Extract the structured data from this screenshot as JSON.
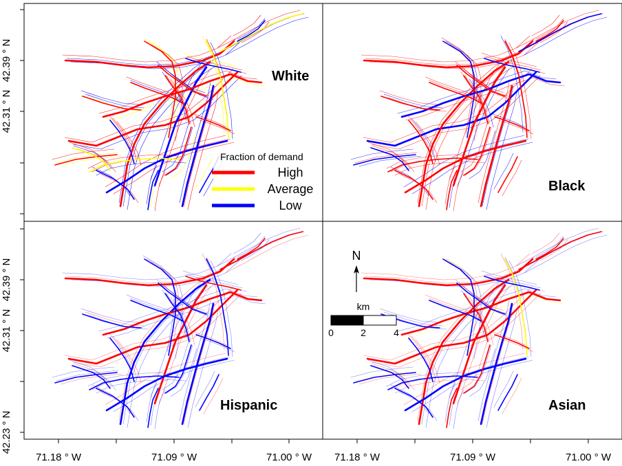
{
  "figure": {
    "latitude_labels": [
      "42.39 ° N",
      "42.31 ° N",
      "42.23 ° N"
    ],
    "longitude_labels": [
      "71.18 ° W",
      "71.09 ° W",
      "71.00 ° W"
    ],
    "panels": [
      {
        "id": "white",
        "label": "White"
      },
      {
        "id": "black",
        "label": "Black"
      },
      {
        "id": "hispanic",
        "label": "Hispanic"
      },
      {
        "id": "asian",
        "label": "Asian"
      }
    ]
  },
  "legend": {
    "title": "Fraction of demand",
    "items": [
      {
        "label": "High",
        "color": "#ff0000"
      },
      {
        "label": "Average",
        "color": "#ffff00"
      },
      {
        "label": "Low",
        "color": "#0000ff"
      }
    ]
  },
  "north_arrow": {
    "label": "N"
  },
  "scale_bar": {
    "unit": "km",
    "ticks": [
      "0",
      "2",
      "4"
    ]
  },
  "colors": {
    "high": "#ff0000",
    "average": "#ffff00",
    "low": "#0000ff",
    "frame": "#000000"
  }
}
